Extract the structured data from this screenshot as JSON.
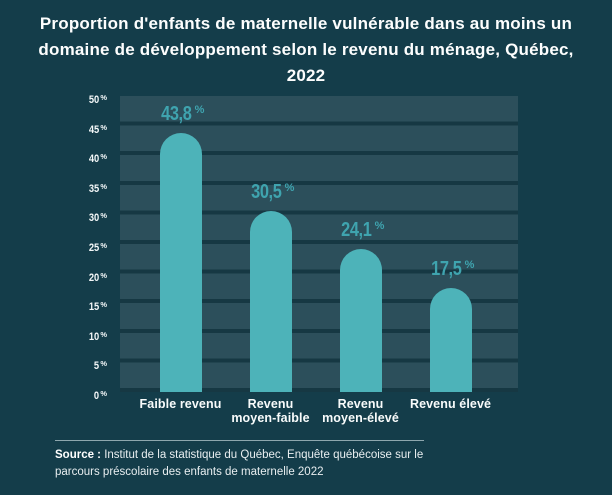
{
  "title": "Proportion d'enfants de maternelle vulnérable dans au moins un domaine de développement selon le revenu du ménage, Québec, 2022",
  "chart_data": {
    "type": "bar",
    "title": "Proportion d'enfants de maternelle vulnérable dans au moins un domaine de développement selon le revenu du ménage, Québec, 2022",
    "categories": [
      "Faible revenu",
      "Revenu moyen-faible",
      "Revenu moyen-élevé",
      "Revenu élevé"
    ],
    "categories_lines": [
      [
        "Faible revenu"
      ],
      [
        "Revenu",
        "moyen-faible"
      ],
      [
        "Revenu",
        "moyen-élevé"
      ],
      [
        "Revenu élevé"
      ]
    ],
    "values": [
      43.8,
      30.5,
      24.1,
      17.5
    ],
    "value_labels": [
      "43,8",
      "30,5",
      "24,1",
      "17,5"
    ],
    "unit": "%",
    "xlabel": "",
    "ylabel": "",
    "ylim": [
      0,
      50
    ],
    "ytick_interval": 5,
    "yticks": [
      "50",
      "45",
      "40",
      "35",
      "30",
      "25",
      "20",
      "15",
      "10",
      "5",
      "0"
    ],
    "grid": "horizontal",
    "legend": "none",
    "colors": {
      "background": "#143d4a",
      "plot_band": "#2c4f5b",
      "gridline": "#163843",
      "bar": "#4db3b9",
      "value_label": "#3fa4af",
      "text": "#fdfefe"
    }
  },
  "source": {
    "label": "Source :",
    "line1": "Institut de la statistique du Québec, Enquête québécoise sur le",
    "line2": "parcours préscolaire des enfants de maternelle 2022"
  }
}
